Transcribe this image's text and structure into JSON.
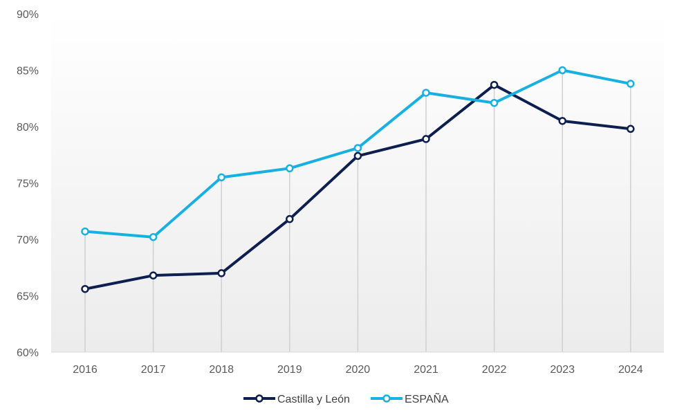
{
  "chart_data": {
    "type": "line",
    "title": "",
    "xlabel": "",
    "ylabel": "",
    "categories": [
      "2016",
      "2017",
      "2018",
      "2019",
      "2020",
      "2021",
      "2022",
      "2023",
      "2024"
    ],
    "ylim": [
      60,
      90
    ],
    "yticks": [
      60,
      65,
      70,
      75,
      80,
      85,
      90
    ],
    "y_tick_format": "percent",
    "grid": "vertical drop lines at each category",
    "legend_position": "bottom-center",
    "series": [
      {
        "name": "Castilla y León",
        "color": "#0d1f4f",
        "values": [
          65.6,
          66.8,
          67.0,
          71.8,
          77.4,
          78.9,
          83.7,
          80.5,
          79.8
        ]
      },
      {
        "name": "ESPAÑA",
        "color": "#17b0e0",
        "values": [
          70.7,
          70.2,
          75.5,
          76.3,
          78.1,
          83.0,
          82.1,
          85.0,
          83.8
        ]
      }
    ]
  }
}
